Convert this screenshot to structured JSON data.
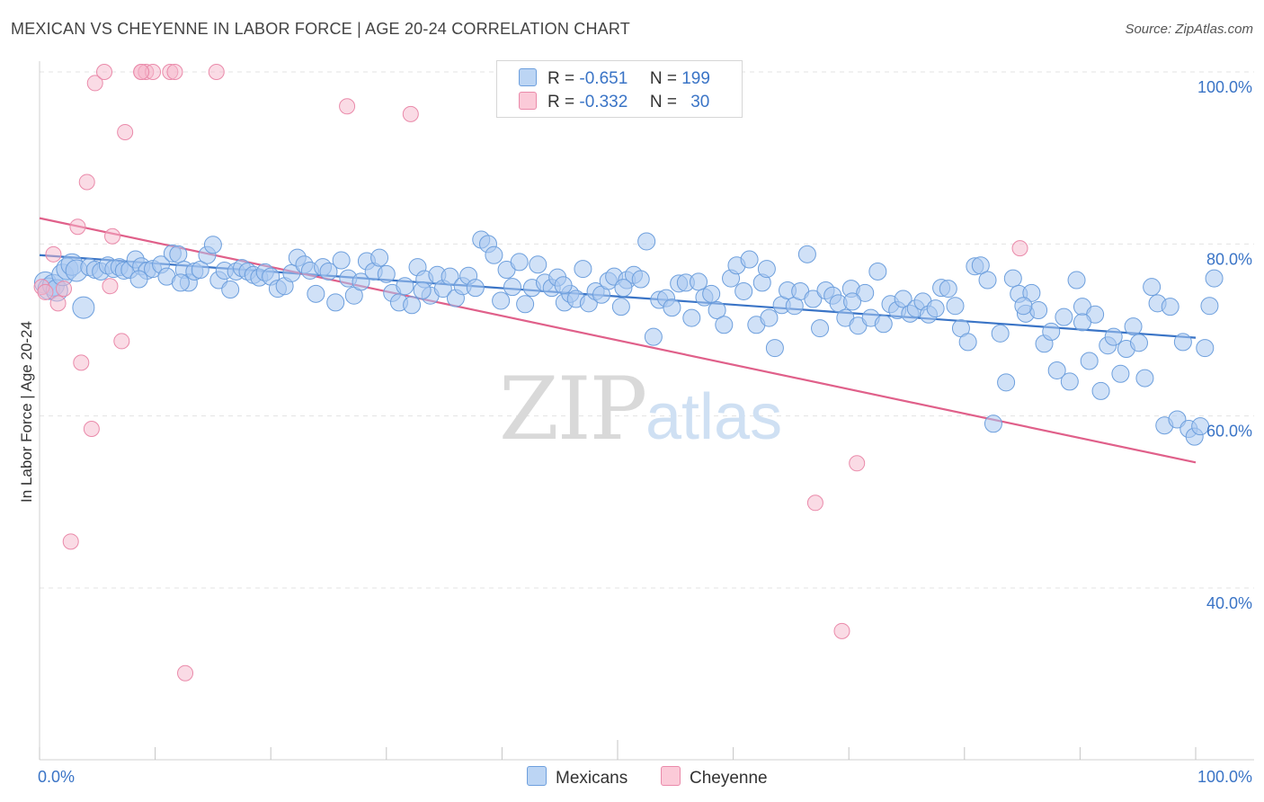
{
  "title": "MEXICAN VS CHEYENNE IN LABOR FORCE | AGE 20-24 CORRELATION CHART",
  "source": "Source: ZipAtlas.com",
  "watermark": {
    "zip": "ZIP",
    "atlas": "atlas"
  },
  "legend": {
    "rows": [
      {
        "r_label": "R =",
        "r_value": "-0.651",
        "n_label": "N =",
        "n_value": "199",
        "color": "#a9c8f0"
      },
      {
        "r_label": "R =",
        "r_value": "-0.332",
        "n_label": "N =",
        "n_value": "30",
        "color": "#f6b8cb"
      }
    ]
  },
  "bottom_legend": [
    "Mexicans",
    "Cheyenne"
  ],
  "chart_data": {
    "type": "scatter",
    "ylabel": "In Labor Force | Age 20-24",
    "xlabel": "",
    "xlim": [
      0,
      100
    ],
    "ylim": [
      25,
      101
    ],
    "x_tick_labels": [
      "0.0%",
      "100.0%"
    ],
    "y_tick_labels": [
      "100.0%",
      "80.0%",
      "60.0%",
      "40.0%"
    ],
    "y_tick_values": [
      100,
      80,
      60,
      40
    ],
    "grid": true,
    "series": [
      {
        "name": "Mexicans",
        "color": "#3a74c6",
        "fill": "#a9c8f0",
        "trend": {
          "x": [
            0,
            100
          ],
          "y": [
            78.7,
            69.1
          ]
        },
        "points": [
          [
            0.5,
            75.5
          ],
          [
            0.8,
            74.8
          ],
          [
            1.2,
            75.2
          ],
          [
            1.5,
            74.6
          ],
          [
            2.0,
            76.4
          ],
          [
            2.4,
            77.1
          ],
          [
            2.8,
            77.6
          ],
          [
            3.2,
            76.9
          ],
          [
            3.8,
            72.6
          ],
          [
            4.3,
            77.3
          ],
          [
            4.8,
            77.0
          ],
          [
            5.3,
            76.8
          ],
          [
            5.9,
            77.5
          ],
          [
            6.4,
            77.1
          ],
          [
            6.9,
            77.3
          ],
          [
            7.3,
            76.9
          ],
          [
            7.8,
            77.0
          ],
          [
            8.3,
            78.2
          ],
          [
            8.8,
            77.4
          ],
          [
            9.3,
            76.9
          ],
          [
            9.8,
            77.1
          ],
          [
            10.5,
            77.6
          ],
          [
            11.0,
            76.2
          ],
          [
            11.5,
            78.9
          ],
          [
            12.0,
            78.8
          ],
          [
            12.5,
            77.0
          ],
          [
            12.9,
            75.5
          ],
          [
            13.4,
            76.8
          ],
          [
            13.9,
            77.0
          ],
          [
            14.5,
            78.7
          ],
          [
            15.0,
            79.9
          ],
          [
            15.5,
            75.8
          ],
          [
            16.0,
            76.9
          ],
          [
            16.5,
            74.7
          ],
          [
            17.0,
            76.8
          ],
          [
            17.5,
            77.2
          ],
          [
            18.0,
            76.8
          ],
          [
            18.5,
            76.4
          ],
          [
            19.0,
            76.1
          ],
          [
            19.5,
            76.7
          ],
          [
            20.0,
            76.2
          ],
          [
            20.6,
            74.8
          ],
          [
            21.2,
            75.1
          ],
          [
            21.8,
            76.6
          ],
          [
            22.3,
            78.4
          ],
          [
            22.9,
            77.6
          ],
          [
            23.4,
            76.9
          ],
          [
            23.9,
            74.2
          ],
          [
            24.5,
            77.3
          ],
          [
            25.0,
            76.8
          ],
          [
            25.6,
            73.2
          ],
          [
            26.1,
            78.1
          ],
          [
            26.7,
            76.0
          ],
          [
            27.2,
            74.0
          ],
          [
            27.8,
            75.6
          ],
          [
            28.3,
            78.0
          ],
          [
            28.9,
            76.8
          ],
          [
            29.4,
            78.4
          ],
          [
            30.0,
            76.5
          ],
          [
            30.5,
            74.3
          ],
          [
            31.1,
            73.2
          ],
          [
            31.6,
            75.1
          ],
          [
            32.2,
            72.9
          ],
          [
            32.7,
            77.3
          ],
          [
            33.3,
            75.9
          ],
          [
            33.8,
            74.0
          ],
          [
            34.4,
            76.4
          ],
          [
            34.9,
            74.8
          ],
          [
            35.5,
            76.2
          ],
          [
            36.0,
            73.7
          ],
          [
            36.6,
            75.1
          ],
          [
            37.1,
            76.3
          ],
          [
            37.7,
            74.9
          ],
          [
            38.2,
            80.5
          ],
          [
            38.8,
            80.0
          ],
          [
            39.3,
            78.7
          ],
          [
            39.9,
            73.4
          ],
          [
            40.4,
            77.0
          ],
          [
            40.9,
            75.0
          ],
          [
            41.5,
            77.9
          ],
          [
            42.0,
            73.0
          ],
          [
            42.6,
            74.9
          ],
          [
            43.1,
            77.6
          ],
          [
            43.7,
            75.5
          ],
          [
            44.3,
            74.9
          ],
          [
            44.8,
            76.1
          ],
          [
            45.4,
            73.2
          ],
          [
            45.9,
            74.2
          ],
          [
            46.4,
            73.6
          ],
          [
            47.0,
            77.1
          ],
          [
            47.5,
            73.1
          ],
          [
            48.1,
            74.5
          ],
          [
            48.6,
            74.1
          ],
          [
            49.2,
            75.7
          ],
          [
            49.7,
            76.2
          ],
          [
            50.3,
            72.7
          ],
          [
            50.8,
            75.8
          ],
          [
            51.4,
            76.4
          ],
          [
            52.0,
            75.9
          ],
          [
            52.5,
            80.3
          ],
          [
            53.1,
            69.2
          ],
          [
            53.6,
            73.5
          ],
          [
            54.2,
            73.7
          ],
          [
            54.7,
            72.6
          ],
          [
            55.3,
            75.4
          ],
          [
            55.9,
            75.5
          ],
          [
            56.4,
            71.4
          ],
          [
            57.0,
            75.6
          ],
          [
            57.5,
            73.8
          ],
          [
            58.1,
            74.2
          ],
          [
            58.6,
            72.3
          ],
          [
            59.2,
            70.6
          ],
          [
            59.8,
            76.0
          ],
          [
            60.3,
            77.5
          ],
          [
            60.9,
            74.5
          ],
          [
            61.4,
            78.2
          ],
          [
            62.0,
            70.6
          ],
          [
            62.5,
            75.5
          ],
          [
            63.1,
            71.4
          ],
          [
            63.6,
            67.9
          ],
          [
            64.2,
            72.9
          ],
          [
            64.7,
            74.6
          ],
          [
            65.3,
            72.8
          ],
          [
            65.8,
            74.5
          ],
          [
            66.4,
            78.8
          ],
          [
            66.9,
            73.6
          ],
          [
            67.5,
            70.2
          ],
          [
            68.0,
            74.6
          ],
          [
            68.6,
            74.0
          ],
          [
            69.1,
            73.1
          ],
          [
            69.7,
            71.4
          ],
          [
            70.2,
            74.8
          ],
          [
            70.8,
            70.5
          ],
          [
            71.4,
            74.3
          ],
          [
            71.9,
            71.4
          ],
          [
            72.5,
            76.8
          ],
          [
            73.0,
            70.7
          ],
          [
            73.6,
            73.0
          ],
          [
            74.2,
            72.3
          ],
          [
            74.7,
            73.6
          ],
          [
            75.3,
            71.9
          ],
          [
            75.8,
            72.5
          ],
          [
            76.4,
            73.3
          ],
          [
            76.9,
            71.8
          ],
          [
            77.5,
            72.5
          ],
          [
            78.0,
            74.9
          ],
          [
            78.6,
            74.8
          ],
          [
            79.2,
            72.8
          ],
          [
            79.7,
            70.2
          ],
          [
            80.3,
            68.6
          ],
          [
            80.9,
            77.4
          ],
          [
            81.4,
            77.5
          ],
          [
            82.0,
            75.8
          ],
          [
            82.5,
            59.1
          ],
          [
            83.1,
            69.6
          ],
          [
            83.6,
            63.9
          ],
          [
            84.2,
            76.0
          ],
          [
            84.7,
            74.2
          ],
          [
            85.3,
            71.9
          ],
          [
            85.8,
            74.3
          ],
          [
            86.4,
            72.3
          ],
          [
            86.9,
            68.4
          ],
          [
            87.5,
            69.8
          ],
          [
            88.0,
            65.3
          ],
          [
            88.6,
            71.5
          ],
          [
            89.1,
            64.0
          ],
          [
            89.7,
            75.8
          ],
          [
            90.2,
            72.7
          ],
          [
            90.8,
            66.4
          ],
          [
            91.3,
            71.8
          ],
          [
            91.8,
            62.9
          ],
          [
            92.4,
            68.2
          ],
          [
            92.9,
            69.2
          ],
          [
            93.5,
            64.9
          ],
          [
            94.0,
            67.8
          ],
          [
            94.6,
            70.4
          ],
          [
            95.1,
            68.5
          ],
          [
            95.6,
            64.4
          ],
          [
            96.2,
            75.0
          ],
          [
            96.7,
            73.1
          ],
          [
            97.3,
            58.9
          ],
          [
            97.8,
            72.7
          ],
          [
            98.4,
            59.6
          ],
          [
            98.9,
            68.6
          ],
          [
            99.4,
            58.5
          ],
          [
            99.9,
            57.6
          ],
          [
            100.4,
            58.8
          ],
          [
            100.8,
            67.9
          ],
          [
            101.2,
            72.8
          ],
          [
            101.6,
            76.0
          ],
          [
            45.3,
            75.2
          ],
          [
            8.6,
            75.9
          ],
          [
            12.2,
            75.5
          ],
          [
            33.1,
            74.6
          ],
          [
            62.9,
            77.1
          ],
          [
            85.1,
            72.8
          ],
          [
            90.2,
            70.9
          ],
          [
            70.3,
            73.3
          ],
          [
            50.5,
            74.9
          ]
        ]
      },
      {
        "name": "Cheyenne",
        "color": "#e0608a",
        "fill": "#f6b8cb",
        "trend": {
          "x": [
            0,
            100
          ],
          "y": [
            83.0,
            54.6
          ]
        },
        "points": [
          [
            0.2,
            75.0
          ],
          [
            0.5,
            74.4
          ],
          [
            1.2,
            78.8
          ],
          [
            1.6,
            73.1
          ],
          [
            2.1,
            74.8
          ],
          [
            2.7,
            45.4
          ],
          [
            3.3,
            82.0
          ],
          [
            3.6,
            66.2
          ],
          [
            4.1,
            87.2
          ],
          [
            4.5,
            58.5
          ],
          [
            4.8,
            98.7
          ],
          [
            5.6,
            100.0
          ],
          [
            6.1,
            75.1
          ],
          [
            6.3,
            80.9
          ],
          [
            7.1,
            68.7
          ],
          [
            7.4,
            93.0
          ],
          [
            8.8,
            100.0
          ],
          [
            9.2,
            100.0
          ],
          [
            9.8,
            100.0
          ],
          [
            11.3,
            100.0
          ],
          [
            11.7,
            100.0
          ],
          [
            12.6,
            30.1
          ],
          [
            15.3,
            100.0
          ],
          [
            26.6,
            96.0
          ],
          [
            32.1,
            95.1
          ],
          [
            67.1,
            49.9
          ],
          [
            69.4,
            35.0
          ],
          [
            70.7,
            54.5
          ],
          [
            84.8,
            79.5
          ],
          [
            8.8,
            100.0
          ]
        ]
      }
    ]
  }
}
